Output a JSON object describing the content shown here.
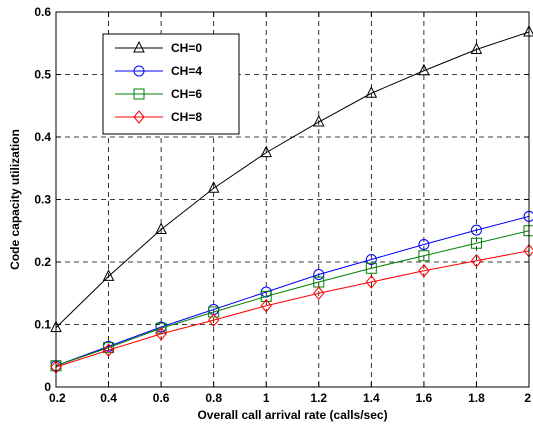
{
  "chart_data": {
    "type": "line",
    "xlabel": "Overall call arrival rate (calls/sec)",
    "ylabel": "Code capacity utilization",
    "xlim": [
      0.2,
      2
    ],
    "ylim": [
      0,
      0.6
    ],
    "x_ticks": [
      "0.2",
      "0.4",
      "0.6",
      "0.8",
      "1",
      "1.2",
      "1.4",
      "1.6",
      "1.8",
      "2"
    ],
    "y_ticks": [
      "0",
      "0.1",
      "0.2",
      "0.3",
      "0.4",
      "0.5",
      "0.6"
    ],
    "grid": true,
    "legend_position": "top-left",
    "x": [
      0.2,
      0.4,
      0.6,
      0.8,
      1.0,
      1.2,
      1.4,
      1.6,
      1.8,
      2.0
    ],
    "series": [
      {
        "name": "CH=0",
        "color": "#000000",
        "marker": "triangle",
        "values": [
          0.095,
          0.177,
          0.252,
          0.318,
          0.375,
          0.424,
          0.47,
          0.506,
          0.54,
          0.568
        ]
      },
      {
        "name": "CH=4",
        "color": "#0000ff",
        "marker": "circle",
        "values": [
          0.034,
          0.065,
          0.096,
          0.124,
          0.152,
          0.18,
          0.204,
          0.228,
          0.251,
          0.273
        ]
      },
      {
        "name": "CH=6",
        "color": "#008000",
        "marker": "square",
        "values": [
          0.034,
          0.063,
          0.094,
          0.12,
          0.145,
          0.168,
          0.19,
          0.21,
          0.23,
          0.25
        ]
      },
      {
        "name": "CH=8",
        "color": "#ff0000",
        "marker": "diamond",
        "values": [
          0.032,
          0.059,
          0.085,
          0.107,
          0.13,
          0.15,
          0.168,
          0.186,
          0.202,
          0.218
        ]
      }
    ]
  }
}
